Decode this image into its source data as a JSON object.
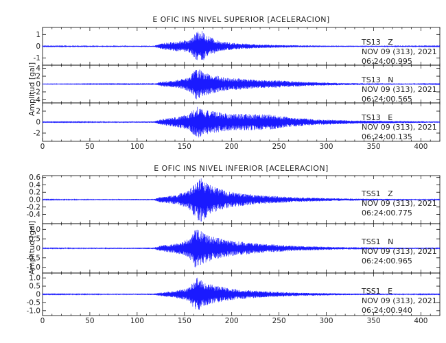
{
  "chart_data": [
    {
      "type": "line",
      "title": "E OFIC INS NIVEL SUPERIOR [ACELERACION]",
      "ylabel": "Amplitud [gal]",
      "xlim": [
        0,
        420
      ],
      "x_ticks": [
        "0",
        "50",
        "100",
        "150",
        "200",
        "250",
        "300",
        "350",
        "400"
      ],
      "color": "#1a1aff",
      "grid": false,
      "panels": [
        {
          "channel": "TS13   Z",
          "date": "NOV 09 (313), 2021",
          "time": "06:24:00.995",
          "ylim": [
            -1.6,
            1.6
          ],
          "y_ticks": [
            1,
            0,
            -1
          ],
          "series": {
            "x_range": [
              0,
              420
            ],
            "envelope": [
              [
                0,
                0.03
              ],
              [
                118,
                0.05
              ],
              [
                125,
                0.25
              ],
              [
                140,
                0.4
              ],
              [
                155,
                0.55
              ],
              [
                163,
                1.2
              ],
              [
                168,
                1.35
              ],
              [
                175,
                0.9
              ],
              [
                185,
                0.5
              ],
              [
                200,
                0.3
              ],
              [
                230,
                0.15
              ],
              [
                260,
                0.1
              ],
              [
                300,
                0.06
              ],
              [
                420,
                0.03
              ]
            ]
          }
        },
        {
          "channel": "TS13   N",
          "date": "NOV 09 (313), 2021",
          "time": "06:24:00.565",
          "ylim": [
            -4.8,
            4.8
          ],
          "y_ticks": [
            4,
            2,
            0,
            -2,
            -4
          ],
          "series": {
            "x_range": [
              0,
              420
            ],
            "envelope": [
              [
                0,
                0.05
              ],
              [
                118,
                0.1
              ],
              [
                125,
                0.6
              ],
              [
                140,
                0.9
              ],
              [
                155,
                1.8
              ],
              [
                163,
                4.3
              ],
              [
                170,
                3.0
              ],
              [
                180,
                2.4
              ],
              [
                195,
                1.6
              ],
              [
                210,
                1.4
              ],
              [
                230,
                1.0
              ],
              [
                250,
                0.9
              ],
              [
                280,
                0.5
              ],
              [
                320,
                0.25
              ],
              [
                420,
                0.08
              ]
            ]
          }
        },
        {
          "channel": "TS13   E",
          "date": "NOV 09 (313), 2021",
          "time": "06:24:00.135",
          "ylim": [
            -3.5,
            3.5
          ],
          "y_ticks": [
            2,
            0,
            -2
          ],
          "series": {
            "x_range": [
              0,
              420
            ],
            "envelope": [
              [
                0,
                0.05
              ],
              [
                118,
                0.12
              ],
              [
                125,
                0.5
              ],
              [
                140,
                0.9
              ],
              [
                155,
                1.5
              ],
              [
                163,
                3.0
              ],
              [
                170,
                2.5
              ],
              [
                180,
                2.0
              ],
              [
                200,
                1.5
              ],
              [
                220,
                1.5
              ],
              [
                240,
                1.4
              ],
              [
                260,
                0.9
              ],
              [
                290,
                0.5
              ],
              [
                330,
                0.3
              ],
              [
                420,
                0.1
              ]
            ]
          }
        }
      ]
    },
    {
      "type": "line",
      "title": "E OFIC INS NIVEL INFERIOR [ACELERACION]",
      "ylabel": "Amplitud [gal]",
      "xlim": [
        0,
        420
      ],
      "x_ticks": [
        "0",
        "50",
        "100",
        "150",
        "200",
        "250",
        "300",
        "350",
        "400"
      ],
      "color": "#1a1aff",
      "grid": false,
      "panels": [
        {
          "channel": "TSS1   Z",
          "date": "NOV 09 (313), 2021",
          "time": "06:24:00.775",
          "ylim": [
            -0.65,
            0.65
          ],
          "y_ticks": [
            0.6,
            0.4,
            0.2,
            0.0,
            -0.2,
            -0.4
          ],
          "series": {
            "x_range": [
              0,
              420
            ],
            "envelope": [
              [
                0,
                0.01
              ],
              [
                118,
                0.02
              ],
              [
                125,
                0.08
              ],
              [
                140,
                0.12
              ],
              [
                155,
                0.25
              ],
              [
                163,
                0.55
              ],
              [
                168,
                0.6
              ],
              [
                180,
                0.35
              ],
              [
                200,
                0.2
              ],
              [
                230,
                0.12
              ],
              [
                270,
                0.06
              ],
              [
                320,
                0.03
              ],
              [
                420,
                0.01
              ]
            ]
          }
        },
        {
          "channel": "TSS1   N",
          "date": "NOV 09 (313), 2021",
          "time": "06:24:00.965",
          "ylim": [
            -1.3,
            1.3
          ],
          "y_ticks": [
            1.0,
            0.5,
            0.0,
            -0.5,
            -1.0
          ],
          "series": {
            "x_range": [
              0,
              420
            ],
            "envelope": [
              [
                0,
                0.02
              ],
              [
                118,
                0.04
              ],
              [
                125,
                0.15
              ],
              [
                140,
                0.25
              ],
              [
                155,
                0.5
              ],
              [
                163,
                1.15
              ],
              [
                170,
                0.8
              ],
              [
                185,
                0.55
              ],
              [
                200,
                0.4
              ],
              [
                230,
                0.25
              ],
              [
                270,
                0.12
              ],
              [
                320,
                0.06
              ],
              [
                420,
                0.02
              ]
            ]
          }
        },
        {
          "channel": "TSS1   E",
          "date": "NOV 09 (313), 2021",
          "time": "06:24:00.940",
          "ylim": [
            -1.3,
            1.3
          ],
          "y_ticks": [
            1.0,
            0.5,
            0.0,
            -0.5,
            -1.0
          ],
          "series": {
            "x_range": [
              0,
              420
            ],
            "envelope": [
              [
                0,
                0.02
              ],
              [
                118,
                0.04
              ],
              [
                125,
                0.12
              ],
              [
                140,
                0.2
              ],
              [
                155,
                0.45
              ],
              [
                163,
                1.1
              ],
              [
                170,
                0.75
              ],
              [
                185,
                0.5
              ],
              [
                200,
                0.35
              ],
              [
                230,
                0.2
              ],
              [
                270,
                0.1
              ],
              [
                320,
                0.05
              ],
              [
                420,
                0.02
              ]
            ]
          }
        }
      ]
    }
  ]
}
